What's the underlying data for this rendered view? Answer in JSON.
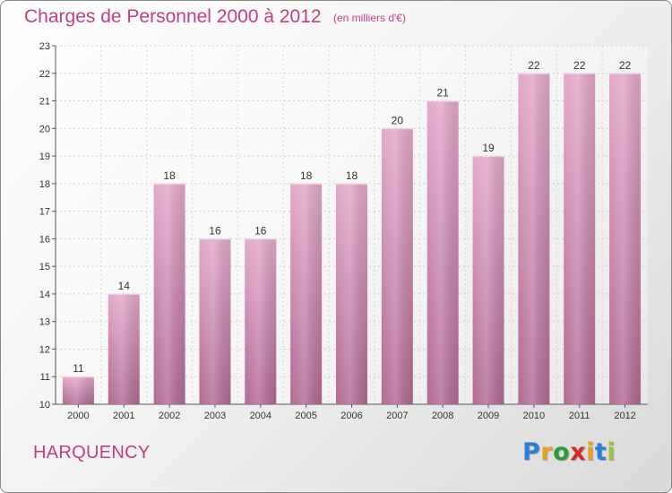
{
  "header": {
    "title": "Charges de Personnel 2000 à 2012",
    "subtitle": "(en milliers d'€)"
  },
  "footer": {
    "commune": "HARQUENCY",
    "logo": [
      "P",
      "r",
      "o",
      "x",
      "i",
      "t",
      "i"
    ],
    "logo_colors": [
      "#2a7fd6",
      "#e8a020",
      "#2a9d3a",
      "#d62a2a",
      "#e8a020",
      "#2a7fd6",
      "#9bc53d"
    ]
  },
  "chart_data": {
    "type": "bar",
    "title": "Charges de Personnel 2000 à 2012",
    "subtitle": "(en milliers d'€)",
    "categories": [
      "2000",
      "2001",
      "2002",
      "2003",
      "2004",
      "2005",
      "2006",
      "2007",
      "2008",
      "2009",
      "2010",
      "2011",
      "2012"
    ],
    "values": [
      11,
      14,
      18,
      16,
      16,
      18,
      18,
      20,
      21,
      19,
      22,
      22,
      22
    ],
    "ylim": [
      10,
      23
    ],
    "yticks": [
      10,
      11,
      12,
      13,
      14,
      15,
      16,
      17,
      18,
      19,
      20,
      21,
      22,
      23
    ],
    "grid": true,
    "bar_color": "#d98ab5",
    "data_labels": true
  }
}
